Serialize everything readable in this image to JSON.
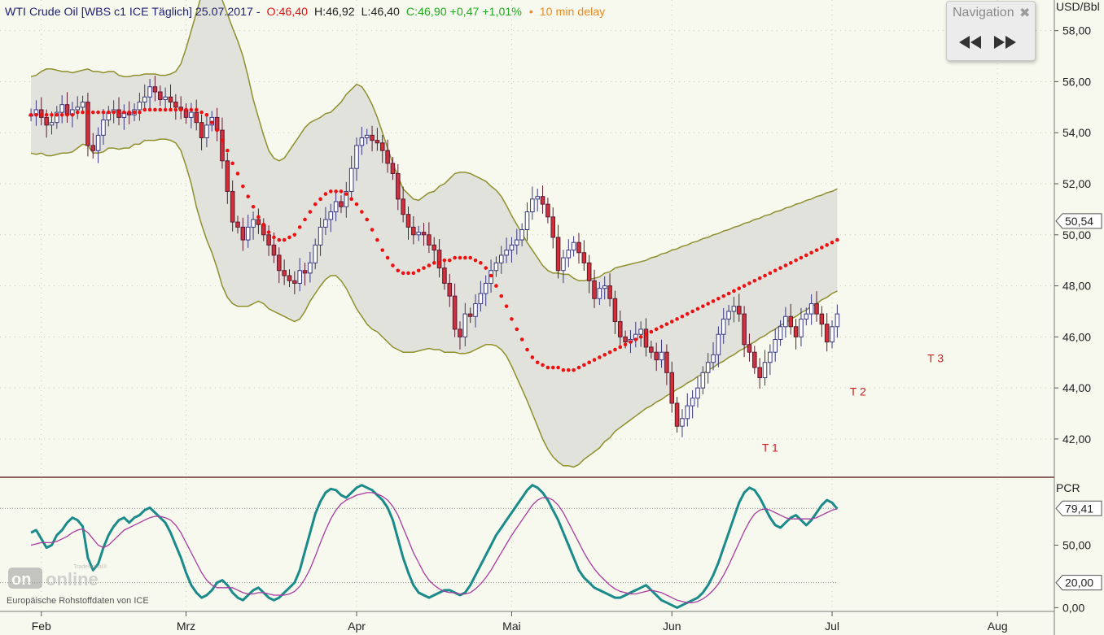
{
  "header": {
    "instrument": "WTI Crude Oil [WBS c1 ICE Täglich] 25.07.2017 -",
    "open": "O:46,40",
    "high": "H:46,92",
    "low": "L:46,40",
    "close_change": "C:46,90 +0,47 +1,01%",
    "delay_bullet": "•",
    "delay": "10 min delay"
  },
  "navigation": {
    "title": "Navigation",
    "close": "✖"
  },
  "watermark": {
    "brand_top": "Tradesignal®",
    "brand": "online"
  },
  "source_note": "Europäische Rohstoffdaten von ICE",
  "colors": {
    "background": "#f7f9ee",
    "band_fill": "#e1e2dc",
    "band_line": "#8f8f2d",
    "candle_up_fill": "#ffffff",
    "candle_up_border": "#383880",
    "candle_down_fill": "#d0303c",
    "candle_down_border": "#5a1a30",
    "parabolic_sar": "#ee1111",
    "pcr_line": "#1a8a8a",
    "pcr_signal": "#a83ca0",
    "panel_divider": "#8f6060"
  },
  "chart_data": [
    {
      "type": "candlestick",
      "title": "WTI Crude Oil [WBS c1 ICE Täglich] 25.07.2017",
      "unit_label": "USD/Bbl",
      "ylim": [
        40.5,
        59.2
      ],
      "y_ticks": [
        "42,00",
        "44,00",
        "46,00",
        "48,00",
        "50,00",
        "52,00",
        "54,00",
        "56,00",
        "58,00"
      ],
      "y_tick_values": [
        42,
        44,
        46,
        48,
        50,
        52,
        54,
        56,
        58
      ],
      "last_price_label": "50,54",
      "last_price_value": 50.54,
      "x_labels": [
        "Feb",
        "Mrz",
        "Apr",
        "Mai",
        "Jun",
        "Jul",
        "Aug"
      ],
      "x_label_days": [
        2,
        30,
        63,
        93,
        124,
        155,
        187
      ],
      "x_range_days": [
        -6,
        198
      ],
      "grid": true,
      "close": [
        54.7,
        54.9,
        54.6,
        54.3,
        54.4,
        54.8,
        55.1,
        54.7,
        54.9,
        55.0,
        55.2,
        53.5,
        53.3,
        53.9,
        54.5,
        54.8,
        54.9,
        54.6,
        54.8,
        54.7,
        54.9,
        55.2,
        55.4,
        55.8,
        55.6,
        55.3,
        55.4,
        55.2,
        55.0,
        54.9,
        54.6,
        54.8,
        54.4,
        53.8,
        54.3,
        54.6,
        54.1,
        52.9,
        51.7,
        50.5,
        50.3,
        49.8,
        50.3,
        50.6,
        50.4,
        50.0,
        49.6,
        49.2,
        48.6,
        48.4,
        48.2,
        48.1,
        48.6,
        48.5,
        48.9,
        49.6,
        50.3,
        50.6,
        50.9,
        51.3,
        51.1,
        51.7,
        52.6,
        53.5,
        53.8,
        53.9,
        53.7,
        53.6,
        53.3,
        52.8,
        52.4,
        51.4,
        50.8,
        50.3,
        50.0,
        50.1,
        50.0,
        49.6,
        49.4,
        48.7,
        48.1,
        47.6,
        46.3,
        46.0,
        46.9,
        46.8,
        47.3,
        47.7,
        48.1,
        48.6,
        48.9,
        49.2,
        49.4,
        49.6,
        49.8,
        50.2,
        50.9,
        51.4,
        51.5,
        51.2,
        50.7,
        49.9,
        48.6,
        49.1,
        49.4,
        49.7,
        49.3,
        48.9,
        48.2,
        47.5,
        47.9,
        48.0,
        47.5,
        46.6,
        46.0,
        45.8,
        45.9,
        46.1,
        46.3,
        45.6,
        45.4,
        45.1,
        45.4,
        44.6,
        43.4,
        42.5,
        42.8,
        43.3,
        43.6,
        44.0,
        44.6,
        45.0,
        45.3,
        46.1,
        46.7,
        47.0,
        47.2,
        46.9,
        45.7,
        45.4,
        44.8,
        44.4,
        45.0,
        45.4,
        45.9,
        46.4,
        46.8,
        46.4,
        46.0,
        46.7,
        46.9,
        47.3,
        46.9,
        46.5,
        45.8,
        46.4,
        46.9
      ],
      "band_center": [
        54.7,
        54.7,
        54.8,
        54.8,
        54.8,
        54.8,
        54.8,
        54.8,
        54.8,
        54.9,
        55.0,
        55.0,
        54.8,
        54.8,
        54.8,
        54.9,
        54.9,
        54.8,
        54.8,
        54.8,
        54.9,
        54.9,
        55.0,
        55.0,
        55.0,
        55.0,
        55.0,
        55.0,
        55.0,
        55.0,
        55.0,
        55.0,
        54.9,
        54.9,
        54.8,
        54.6,
        54.2,
        53.6,
        53.1,
        52.7,
        52.4,
        52.1,
        51.7,
        51.3,
        51.0,
        50.6,
        50.2,
        50.0,
        49.9,
        49.9,
        50.0,
        50.1,
        50.3,
        50.6,
        50.9,
        51.1,
        51.3,
        51.5,
        51.6,
        51.7,
        51.7,
        51.7,
        51.6,
        51.5,
        51.3,
        51.0,
        50.7,
        50.4,
        50.0,
        49.6,
        49.2,
        48.9,
        48.6,
        48.5,
        48.4,
        48.4,
        48.5,
        48.6,
        48.6,
        48.7,
        48.7,
        48.8,
        48.9,
        48.9,
        48.9,
        48.9,
        48.9,
        48.9,
        48.9,
        48.8,
        48.7,
        48.5,
        48.2,
        47.8,
        47.4,
        47.0,
        46.6,
        46.2,
        45.8,
        45.4,
        45.1,
        44.9,
        44.8,
        44.7,
        44.7,
        44.6,
        44.6,
        44.7,
        44.8,
        44.9,
        45.0,
        45.2,
        45.3,
        45.5,
        45.6,
        45.7,
        45.8,
        45.9,
        46.0,
        46.1,
        46.2,
        46.3,
        46.4,
        46.5,
        46.6,
        46.7,
        46.8,
        46.9,
        47.0,
        47.1,
        47.2,
        47.3,
        47.4,
        47.5,
        47.6,
        47.7,
        47.8,
        47.9,
        48.0,
        48.1,
        48.2,
        48.3,
        48.4,
        48.5,
        48.6,
        48.7,
        48.8,
        48.9,
        49.0,
        49.1,
        49.2,
        49.3,
        49.4,
        49.5,
        49.6,
        49.7,
        49.8
      ],
      "band_width": [
        1.5,
        1.55,
        1.6,
        1.7,
        1.7,
        1.65,
        1.6,
        1.6,
        1.55,
        1.5,
        1.45,
        1.5,
        1.6,
        1.6,
        1.55,
        1.5,
        1.5,
        1.45,
        1.4,
        1.4,
        1.35,
        1.35,
        1.3,
        1.3,
        1.3,
        1.25,
        1.25,
        1.3,
        1.4,
        1.7,
        2.3,
        3.0,
        3.8,
        4.5,
        5.0,
        5.3,
        5.5,
        5.6,
        5.55,
        5.4,
        5.2,
        4.9,
        4.5,
        4.0,
        3.6,
        3.3,
        3.1,
        3.0,
        3.0,
        3.1,
        3.3,
        3.5,
        3.6,
        3.6,
        3.5,
        3.4,
        3.3,
        3.25,
        3.2,
        3.3,
        3.5,
        3.8,
        4.1,
        4.4,
        4.5,
        4.5,
        4.4,
        4.2,
        4.0,
        3.8,
        3.6,
        3.4,
        3.2,
        3.1,
        3.0,
        2.95,
        3.0,
        3.05,
        3.1,
        3.2,
        3.3,
        3.4,
        3.5,
        3.55,
        3.55,
        3.5,
        3.4,
        3.3,
        3.2,
        3.1,
        3.05,
        3.0,
        2.95,
        2.95,
        3.0,
        3.05,
        3.1,
        3.2,
        3.3,
        3.4,
        3.5,
        3.6,
        3.7,
        3.75,
        3.75,
        3.7,
        3.6,
        3.5,
        3.45,
        3.4,
        3.35,
        3.3,
        3.25,
        3.2,
        3.15,
        3.1,
        3.05,
        3.0,
        2.95,
        2.9,
        2.9,
        2.85,
        2.85,
        2.8,
        2.8,
        2.75,
        2.75,
        2.7,
        2.7,
        2.65,
        2.65,
        2.6,
        2.6,
        2.55,
        2.55,
        2.5,
        2.5,
        2.45,
        2.45,
        2.4,
        2.4,
        2.35,
        2.35,
        2.3,
        2.3,
        2.25,
        2.25,
        2.2,
        2.2,
        2.15,
        2.15,
        2.1,
        2.1,
        2.05,
        2.05,
        2.0,
        2.0
      ],
      "parabolic_sar": [
        54.7,
        54.7,
        54.7,
        54.7,
        54.7,
        54.7,
        54.7,
        54.7,
        54.7,
        54.8,
        54.8,
        54.8,
        54.8,
        54.8,
        54.8,
        54.8,
        54.8,
        54.8,
        54.8,
        54.8,
        54.8,
        54.8,
        54.9,
        54.9,
        54.9,
        54.9,
        54.9,
        54.9,
        54.9,
        54.9,
        54.9,
        54.9,
        54.9,
        54.8,
        54.7,
        54.4,
        54.1,
        53.7,
        53.3,
        52.8,
        52.4,
        51.9,
        51.5,
        51.1,
        50.7,
        50.4,
        50.1,
        49.9,
        49.8,
        49.8,
        49.9,
        50.0,
        50.3,
        50.6,
        50.9,
        51.2,
        51.4,
        51.6,
        51.7,
        51.7,
        51.7,
        51.6,
        51.4,
        51.2,
        50.9,
        50.6,
        50.2,
        49.8,
        49.4,
        49.1,
        48.8,
        48.6,
        48.5,
        48.5,
        48.5,
        48.6,
        48.7,
        48.8,
        48.9,
        48.9,
        49.0,
        49.0,
        49.1,
        49.1,
        49.1,
        49.1,
        49.0,
        48.9,
        48.7,
        48.4,
        48.0,
        47.6,
        47.2,
        46.7,
        46.3,
        45.9,
        45.5,
        45.2,
        45.0,
        44.9,
        44.8,
        44.8,
        44.8,
        44.7,
        44.7,
        44.7,
        44.8,
        44.9,
        45.0,
        45.1,
        45.2,
        45.3,
        45.4,
        45.5,
        45.6,
        45.7,
        45.8,
        45.9,
        46.0,
        46.1,
        46.2,
        46.3,
        46.4,
        46.5,
        46.6,
        46.7,
        46.8,
        46.9,
        47.0,
        47.1,
        47.2,
        47.3,
        47.4,
        47.5,
        47.6,
        47.7,
        47.8,
        47.9,
        48.0,
        48.1,
        48.2,
        48.3,
        48.4,
        48.5,
        48.6,
        48.7,
        48.8,
        48.9,
        49.0,
        49.1,
        49.2,
        49.3,
        49.4,
        49.5,
        49.6,
        49.7,
        49.8
      ],
      "annotations": [
        {
          "label": "T 1",
          "day": 143,
          "value": 41.5
        },
        {
          "label": "T 2",
          "day": 160,
          "value": 43.7
        },
        {
          "label": "T 3",
          "day": 175,
          "value": 45.0
        }
      ]
    },
    {
      "type": "line",
      "title": "",
      "indicator_label": "PCR",
      "ylim": [
        -3,
        103
      ],
      "y_ticks": [
        "0,00",
        "50,00"
      ],
      "y_tick_values": [
        0,
        50
      ],
      "reference_levels": [
        {
          "label": "79,41",
          "value": 79.41
        },
        {
          "label": "20,00",
          "value": 20.0
        }
      ],
      "x_range_days": [
        -6,
        198
      ],
      "series": [
        {
          "role": "pcr",
          "values": [
            60,
            62,
            55,
            48,
            50,
            58,
            62,
            68,
            72,
            70,
            65,
            40,
            30,
            35,
            48,
            58,
            65,
            70,
            72,
            68,
            72,
            74,
            78,
            80,
            76,
            72,
            68,
            60,
            50,
            40,
            28,
            18,
            12,
            8,
            10,
            14,
            20,
            22,
            18,
            12,
            8,
            6,
            10,
            14,
            16,
            12,
            8,
            6,
            8,
            12,
            16,
            20,
            30,
            45,
            60,
            75,
            85,
            92,
            95,
            94,
            90,
            88,
            92,
            96,
            98,
            96,
            94,
            90,
            86,
            80,
            70,
            55,
            40,
            28,
            18,
            12,
            10,
            8,
            10,
            12,
            14,
            14,
            12,
            10,
            12,
            18,
            26,
            34,
            42,
            50,
            58,
            64,
            70,
            76,
            82,
            88,
            94,
            98,
            96,
            92,
            86,
            78,
            70,
            60,
            50,
            40,
            30,
            24,
            20,
            16,
            14,
            12,
            10,
            8,
            8,
            10,
            12,
            14,
            16,
            18,
            14,
            10,
            6,
            4,
            2,
            0,
            2,
            4,
            6,
            8,
            12,
            18,
            26,
            36,
            48,
            60,
            72,
            84,
            92,
            96,
            94,
            88,
            80,
            72,
            66,
            64,
            68,
            72,
            74,
            70,
            66,
            70,
            76,
            82,
            86,
            84,
            79
          ]
        },
        {
          "role": "signal",
          "values": [
            50,
            51,
            52,
            52,
            52,
            53,
            55,
            57,
            60,
            62,
            63,
            60,
            55,
            50,
            48,
            50,
            54,
            58,
            62,
            64,
            66,
            68,
            70,
            72,
            73,
            73,
            72,
            70,
            66,
            60,
            52,
            44,
            36,
            28,
            22,
            18,
            16,
            16,
            16,
            16,
            14,
            12,
            11,
            11,
            12,
            12,
            11,
            10,
            10,
            10,
            11,
            13,
            17,
            23,
            31,
            41,
            52,
            62,
            71,
            78,
            83,
            86,
            88,
            90,
            91,
            92,
            92,
            91,
            89,
            86,
            81,
            74,
            64,
            54,
            44,
            36,
            28,
            22,
            18,
            15,
            13,
            12,
            12,
            11,
            11,
            12,
            15,
            19,
            24,
            30,
            37,
            44,
            51,
            58,
            64,
            70,
            76,
            82,
            86,
            88,
            88,
            86,
            82,
            76,
            68,
            60,
            52,
            44,
            37,
            31,
            26,
            22,
            18,
            15,
            13,
            12,
            11,
            11,
            12,
            13,
            14,
            13,
            12,
            10,
            8,
            6,
            5,
            4,
            4,
            5,
            7,
            10,
            14,
            19,
            26,
            34,
            43,
            52,
            61,
            69,
            75,
            78,
            79,
            78,
            76,
            74,
            72,
            71,
            71,
            71,
            71,
            71,
            72,
            74,
            76,
            78,
            79
          ]
        }
      ]
    }
  ]
}
